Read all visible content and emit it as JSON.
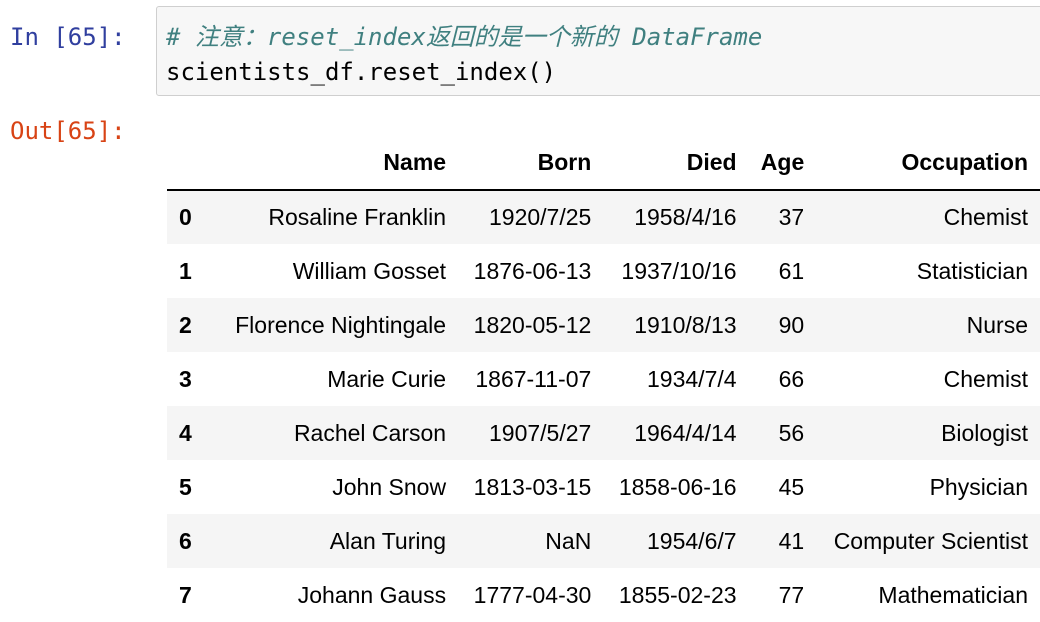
{
  "input_cell": {
    "prompt": "In [65]:",
    "comment": "# 注意：reset_index返回的是一个新的 DataFrame",
    "code": "scientists_df.reset_index()"
  },
  "output_cell": {
    "prompt": "Out[65]:",
    "columns": [
      "",
      "Name",
      "Born",
      "Died",
      "Age",
      "Occupation"
    ],
    "rows": [
      [
        "0",
        "Rosaline Franklin",
        "1920/7/25",
        "1958/4/16",
        "37",
        "Chemist"
      ],
      [
        "1",
        "William Gosset",
        "1876-06-13",
        "1937/10/16",
        "61",
        "Statistician"
      ],
      [
        "2",
        "Florence Nightingale",
        "1820-05-12",
        "1910/8/13",
        "90",
        "Nurse"
      ],
      [
        "3",
        "Marie Curie",
        "1867-11-07",
        "1934/7/4",
        "66",
        "Chemist"
      ],
      [
        "4",
        "Rachel Carson",
        "1907/5/27",
        "1964/4/14",
        "56",
        "Biologist"
      ],
      [
        "5",
        "John Snow",
        "1813-03-15",
        "1858-06-16",
        "45",
        "Physician"
      ],
      [
        "6",
        "Alan Turing",
        "NaN",
        "1954/6/7",
        "41",
        "Computer Scientist"
      ],
      [
        "7",
        "Johann Gauss",
        "1777-04-30",
        "1855-02-23",
        "77",
        "Mathematician"
      ]
    ]
  },
  "colors": {
    "in_prompt": "#303f9f",
    "out_prompt": "#d84315",
    "comment": "#408080",
    "input_background": "#f7f7f7",
    "row_stripe": "#f5f5f5"
  }
}
